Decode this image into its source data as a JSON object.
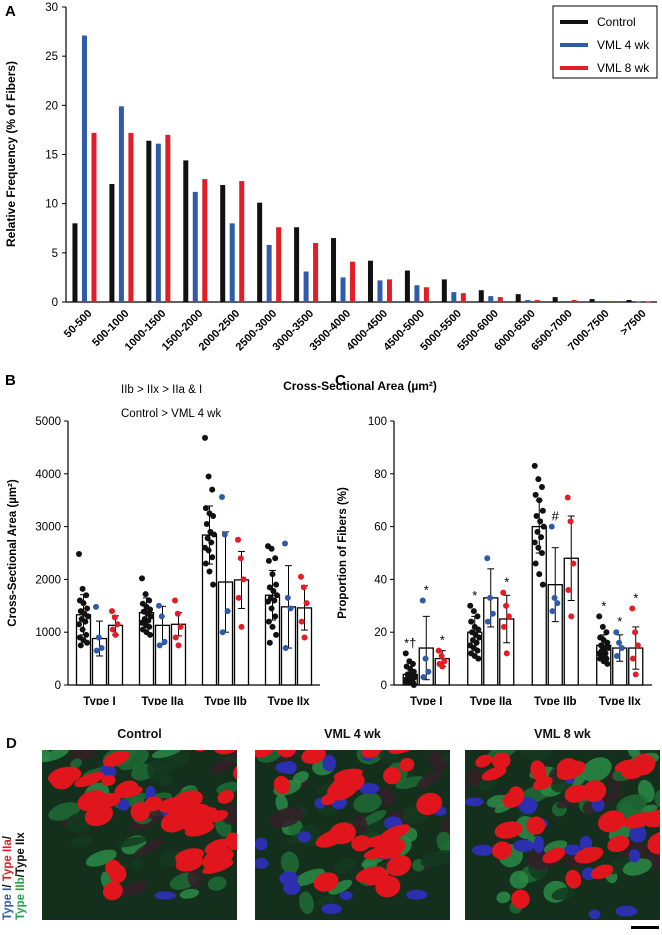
{
  "panels": {
    "a": {
      "letter": "A"
    },
    "b": {
      "letter": "B",
      "note_line1": "IIb > IIx > IIa & I",
      "note_line2": "Control > VML 4 wk"
    },
    "c": {
      "letter": "C"
    },
    "d": {
      "letter": "D",
      "titles": [
        "Control",
        "VML 4 wk",
        "VML 8 wk"
      ],
      "side_label": {
        "type1": "Type I",
        "slash1": "/",
        "type2a": "Type IIa",
        "slash2": "/",
        "type2b": "Type IIb",
        "slash3": "/",
        "type2x": "Type IIx"
      }
    }
  },
  "colors": {
    "control": "#111111",
    "vml4": "#2e5ca8",
    "vml8": "#e21d26"
  },
  "chart_data": [
    {
      "id": "A",
      "type": "bar",
      "xlabel": "Cross-Sectional Area (µm²)",
      "ylabel": "Relative Frequency (% of Fibers)",
      "ylim": [
        0,
        30
      ],
      "yticks": [
        "0",
        "5",
        "10",
        "15",
        "20",
        "25",
        "30"
      ],
      "legend_position": "top-right",
      "categories": [
        "50-500",
        "500-1000",
        "1000-1500",
        "1500-2000",
        "2000-2500",
        "2500-3000",
        "3000-3500",
        "3500-4000",
        "4000-4500",
        "4500-5000",
        "5000-5500",
        "5500-6000",
        "6000-6500",
        "6500-7000",
        "7000-7500",
        ">7500"
      ],
      "series": [
        {
          "name": "Control",
          "values": [
            8.0,
            12.0,
            16.4,
            14.4,
            11.9,
            10.1,
            7.6,
            6.5,
            4.2,
            3.2,
            2.3,
            1.2,
            0.8,
            0.5,
            0.3,
            0.2
          ]
        },
        {
          "name": "VML 4 wk",
          "values": [
            27.1,
            19.9,
            16.1,
            11.2,
            8.0,
            5.8,
            3.1,
            2.5,
            2.2,
            1.7,
            1.0,
            0.6,
            0.2,
            0.1,
            0.1,
            0.05
          ]
        },
        {
          "name": "VML 8 wk",
          "values": [
            17.2,
            17.2,
            17.0,
            12.5,
            12.3,
            7.6,
            6.0,
            4.1,
            2.3,
            1.5,
            0.9,
            0.5,
            0.2,
            0.2,
            0.1,
            0.05
          ]
        }
      ]
    },
    {
      "id": "B",
      "type": "bar",
      "ylabel": "Cross-Sectional Area (µm²)",
      "ylim": [
        0,
        5000
      ],
      "yticks": [
        "0",
        "1000",
        "2000",
        "3000",
        "4000",
        "5000"
      ],
      "categories": [
        "Type I",
        "Type IIa",
        "Type IIb",
        "Type IIx"
      ],
      "series": [
        {
          "name": "Control",
          "values": [
            1330,
            1370,
            2840,
            1700
          ],
          "errors": [
            380,
            280,
            550,
            470
          ],
          "points": [
            [
              2480,
              1820,
              1700,
              1600,
              1550,
              1450,
              1400,
              1350,
              1300,
              1250,
              1200,
              1150,
              1050,
              950,
              900,
              850,
              800,
              750
            ],
            [
              2020,
              1720,
              1600,
              1540,
              1480,
              1430,
              1390,
              1350,
              1300,
              1250,
              1220,
              1180,
              1150,
              1100,
              1050,
              1000,
              950
            ],
            [
              4680,
              3950,
              3700,
              3350,
              3250,
              3200,
              3050,
              2900,
              2850,
              2780,
              2700,
              2600,
              2550,
              2420,
              2300,
              2150,
              1900
            ],
            [
              2630,
              2580,
              2400,
              2350,
              2100,
              1900,
              1850,
              1780,
              1700,
              1650,
              1600,
              1580,
              1450,
              1300,
              1200,
              1100,
              950,
              800
            ]
          ]
        },
        {
          "name": "VML 4 wk",
          "values": [
            880,
            1130,
            1950,
            1480
          ],
          "errors": [
            330,
            360,
            950,
            780
          ],
          "points": [
            [
              1480,
              900,
              700,
              650
            ],
            [
              1500,
              1300,
              820,
              750
            ],
            [
              3560,
              2850,
              1400,
              1000
            ],
            [
              2680,
              1650,
              1450,
              700
            ]
          ]
        },
        {
          "name": "VML 8 wk",
          "values": [
            1130,
            1150,
            1990,
            1460
          ],
          "errors": [
            180,
            220,
            540,
            420
          ],
          "points": [
            [
              1400,
              1280,
              1150,
              1050,
              950
            ],
            [
              1600,
              1350,
              1100,
              900,
              750
            ],
            [
              2750,
              2400,
              2000,
              1650,
              1100
            ],
            [
              2050,
              1850,
              1550,
              1200,
              900
            ]
          ]
        }
      ]
    },
    {
      "id": "C",
      "type": "bar",
      "ylabel": "Proportion of Fibers (%)",
      "ylim": [
        0,
        100
      ],
      "yticks": [
        "0",
        "20",
        "40",
        "60",
        "80",
        "100"
      ],
      "categories": [
        "Type I",
        "Type IIa",
        "Type IIb",
        "Type IIx"
      ],
      "series": [
        {
          "name": "Control",
          "values": [
            4,
            20,
            60,
            15
          ],
          "errors": [
            3,
            6,
            10,
            4
          ],
          "points": [
            [
              12,
              9,
              8,
              7,
              6,
              5,
              4,
              4,
              3,
              3,
              2,
              2,
              2,
              1,
              1,
              1,
              0
            ],
            [
              30,
              28,
              26,
              24,
              22,
              21,
              20,
              19,
              18,
              17,
              16,
              15,
              14,
              13,
              12,
              11,
              10
            ],
            [
              83,
              78,
              75,
              72,
              70,
              66,
              64,
              62,
              60,
              58,
              56,
              54,
              52,
              50,
              46,
              42,
              38
            ],
            [
              26,
              22,
              20,
              18,
              17,
              16,
              15,
              14,
              14,
              13,
              12,
              12,
              11,
              10,
              10,
              9,
              8
            ]
          ]
        },
        {
          "name": "VML 4 wk",
          "values": [
            14,
            33,
            38,
            14
          ],
          "errors": [
            12,
            11,
            14,
            5
          ],
          "points": [
            [
              32,
              10,
              5,
              3
            ],
            [
              48,
              33,
              27,
              24
            ],
            [
              60,
              33,
              31,
              28
            ],
            [
              20,
              16,
              14,
              11
            ]
          ]
        },
        {
          "name": "VML 8 wk",
          "values": [
            10,
            25,
            48,
            14
          ],
          "errors": [
            3,
            9,
            16,
            8
          ],
          "points": [
            [
              13,
              11,
              9,
              8,
              7
            ],
            [
              35,
              30,
              26,
              22,
              12
            ],
            [
              71,
              62,
              46,
              36,
              26
            ],
            [
              29,
              20,
              15,
              10,
              4
            ]
          ]
        }
      ],
      "annotations": [
        {
          "category": "Type I",
          "series": "Control",
          "text": "*†"
        },
        {
          "category": "Type I",
          "series": "VML 4 wk",
          "text": "*"
        },
        {
          "category": "Type I",
          "series": "VML 8 wk",
          "text": "*"
        },
        {
          "category": "Type IIa",
          "series": "Control",
          "text": "*"
        },
        {
          "category": "Type IIa",
          "series": "VML 8 wk",
          "text": "*"
        },
        {
          "category": "Type IIb",
          "series": "VML 4 wk",
          "text": "#"
        },
        {
          "category": "Type IIx",
          "series": "Control",
          "text": "*"
        },
        {
          "category": "Type IIx",
          "series": "VML 4 wk",
          "text": "*"
        },
        {
          "category": "Type IIx",
          "series": "VML 8 wk",
          "text": "*"
        }
      ]
    }
  ]
}
